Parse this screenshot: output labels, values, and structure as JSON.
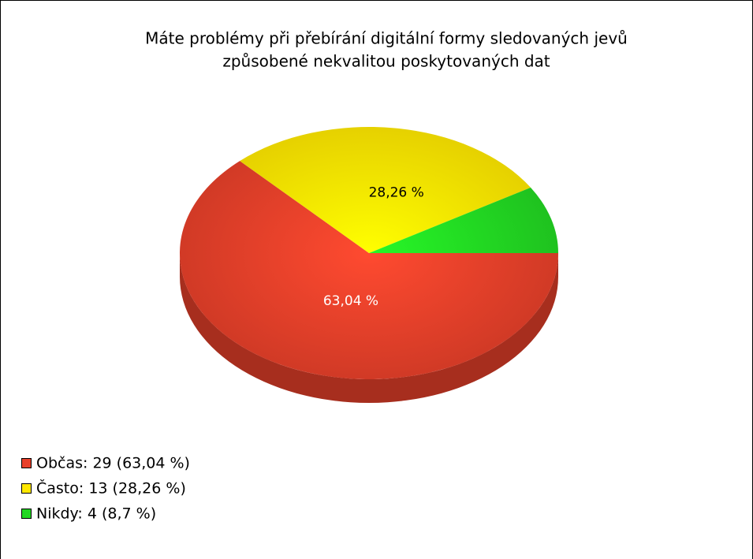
{
  "chart_data": {
    "type": "pie3d",
    "title": [
      "Máte problémy při přebírání digitální formy sledovaných jevů",
      "způsobené nekvalitou poskytovaných dat"
    ],
    "values": [
      63.04,
      28.26,
      8.7
    ],
    "value_labels": [
      "63,04 %",
      "28,26 %",
      null
    ],
    "labels": [
      "Občas: 29 (63,04 %)",
      "Často: 13 (28,26 %)",
      "Nikdy: 4 (8,7 %)"
    ],
    "colors": [
      "#e8402a",
      "#ffe800",
      "#22d822"
    ],
    "value_label_colors": [
      "#ffffff",
      "#000000",
      "#000000"
    ]
  }
}
